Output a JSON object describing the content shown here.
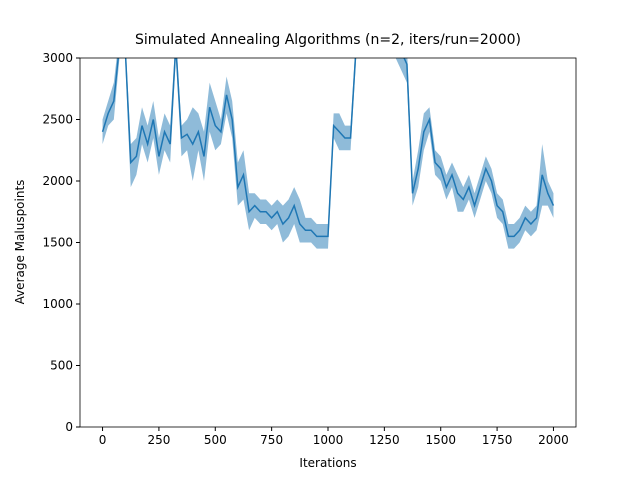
{
  "chart_data": {
    "type": "line",
    "title": "Simulated Annealing Algorithms (n=2, iters/run=2000)",
    "x_label": "Iterations",
    "y_label": "Average Maluspoints",
    "xlim": [
      -100,
      2100
    ],
    "ylim": [
      0,
      3000
    ],
    "xticks": [
      0,
      250,
      500,
      750,
      1000,
      1250,
      1500,
      1750,
      2000
    ],
    "yticks": [
      0,
      500,
      1000,
      1500,
      2000,
      2500,
      3000
    ],
    "x": [
      0,
      25,
      50,
      75,
      100,
      125,
      150,
      175,
      200,
      225,
      250,
      275,
      300,
      325,
      350,
      375,
      400,
      425,
      450,
      475,
      500,
      525,
      550,
      575,
      600,
      625,
      650,
      675,
      700,
      725,
      750,
      775,
      800,
      825,
      850,
      875,
      900,
      925,
      950,
      975,
      1000,
      1025,
      1050,
      1075,
      1100,
      1125,
      1150,
      1175,
      1200,
      1225,
      1250,
      1275,
      1300,
      1325,
      1350,
      1375,
      1400,
      1425,
      1450,
      1475,
      1500,
      1525,
      1550,
      1575,
      1600,
      1625,
      1650,
      1675,
      1700,
      1725,
      1750,
      1775,
      1800,
      1825,
      1850,
      1875,
      1900,
      1925,
      1950,
      1975,
      2000
    ],
    "series": [
      {
        "color": "#1f77b4",
        "values": [
          2400,
          2550,
          2650,
          3100,
          3100,
          2150,
          2200,
          2450,
          2300,
          2500,
          2200,
          2400,
          2300,
          3100,
          2350,
          2380,
          2300,
          2400,
          2200,
          2600,
          2450,
          2400,
          2700,
          2500,
          1950,
          2050,
          1750,
          1800,
          1750,
          1750,
          1700,
          1750,
          1650,
          1700,
          1800,
          1650,
          1600,
          1600,
          1550,
          1550,
          1550,
          2450,
          2400,
          2350,
          2350,
          3100,
          3100,
          3100,
          3100,
          3100,
          3100,
          3100,
          3100,
          3050,
          2950,
          1900,
          2100,
          2400,
          2500,
          2150,
          2100,
          1950,
          2050,
          1900,
          1850,
          1950,
          1800,
          1950,
          2100,
          2000,
          1800,
          1750,
          1550,
          1550,
          1600,
          1700,
          1650,
          1700,
          2050,
          1900,
          1800
        ],
        "upper": [
          2500,
          2650,
          2800,
          3200,
          3200,
          2300,
          2350,
          2600,
          2450,
          2650,
          2350,
          2550,
          2450,
          3200,
          2450,
          2500,
          2600,
          2550,
          2400,
          2800,
          2650,
          2500,
          2850,
          2650,
          2150,
          2250,
          1900,
          1900,
          1850,
          1850,
          1800,
          1850,
          1800,
          1850,
          1950,
          1850,
          1700,
          1700,
          1650,
          1650,
          1650,
          2550,
          2550,
          2450,
          2450,
          3200,
          3200,
          3200,
          3200,
          3200,
          3200,
          3200,
          3200,
          3200,
          3100,
          2000,
          2250,
          2550,
          2600,
          2250,
          2200,
          2050,
          2150,
          2050,
          1950,
          2050,
          1900,
          2050,
          2200,
          2100,
          1900,
          1850,
          1650,
          1650,
          1700,
          1800,
          1750,
          1800,
          2300,
          2000,
          1900
        ],
        "lower": [
          2300,
          2450,
          2500,
          3000,
          3000,
          1950,
          2050,
          2300,
          2150,
          2350,
          2050,
          2250,
          2150,
          3000,
          2200,
          2250,
          2000,
          2250,
          2000,
          2400,
          2250,
          2300,
          2550,
          2350,
          1800,
          1850,
          1600,
          1700,
          1650,
          1650,
          1600,
          1650,
          1500,
          1550,
          1650,
          1500,
          1500,
          1500,
          1450,
          1450,
          1450,
          2350,
          2250,
          2250,
          2250,
          3000,
          3000,
          3000,
          3000,
          3000,
          3000,
          3000,
          3000,
          2900,
          2800,
          1800,
          1950,
          2250,
          2400,
          2050,
          2000,
          1850,
          1950,
          1750,
          1750,
          1850,
          1700,
          1850,
          2000,
          1900,
          1700,
          1650,
          1450,
          1450,
          1500,
          1600,
          1550,
          1600,
          1800,
          1800,
          1700
        ]
      }
    ]
  }
}
